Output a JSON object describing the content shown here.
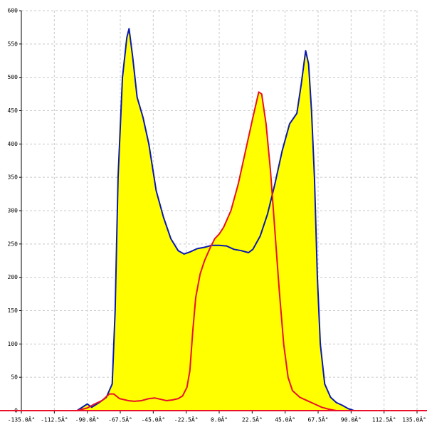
{
  "chart_data": {
    "type": "area",
    "series": [
      {
        "name": null,
        "color": "#0a18b0",
        "fill": "#ffff00",
        "x": [
          -97,
          -90,
          -87,
          -82,
          -77,
          -73,
          -71,
          -69,
          -66,
          -63,
          -61.5,
          -59,
          -56,
          -52,
          -48,
          -43,
          -38,
          -33,
          -28,
          -24,
          -20,
          -15,
          -10,
          -5,
          0,
          5,
          10,
          15,
          20,
          23,
          28,
          33,
          38,
          43,
          48,
          53,
          56,
          59,
          61,
          63,
          65,
          67,
          69,
          72,
          76,
          80,
          84,
          88,
          92
        ],
        "values": [
          0,
          10,
          5,
          12,
          20,
          40,
          150,
          350,
          500,
          560,
          573,
          530,
          470,
          440,
          400,
          330,
          290,
          258,
          240,
          235,
          238,
          243,
          245,
          248,
          248,
          247,
          242,
          240,
          237,
          242,
          262,
          295,
          340,
          390,
          430,
          446,
          490,
          540,
          520,
          450,
          350,
          200,
          100,
          40,
          20,
          12,
          8,
          3,
          0
        ]
      },
      {
        "name": null,
        "color": "#e8102a",
        "fill": "#ffff00",
        "x": [
          -97,
          -90,
          -85,
          -80,
          -75,
          -72,
          -68,
          -62,
          -58,
          -53,
          -48,
          -44,
          -40,
          -36,
          -32,
          -28,
          -25,
          -22,
          -20,
          -18,
          -16,
          -13,
          -10,
          -6,
          -3,
          0,
          3,
          8,
          13,
          18,
          23,
          27,
          29,
          32,
          35,
          38,
          41,
          44,
          47,
          50,
          55,
          60,
          65,
          70,
          75,
          80
        ],
        "values": [
          0,
          4,
          10,
          15,
          25,
          25,
          18,
          15,
          14,
          15,
          18,
          19,
          17,
          15,
          16,
          18,
          22,
          35,
          60,
          120,
          170,
          205,
          225,
          245,
          258,
          265,
          275,
          300,
          340,
          390,
          440,
          478,
          475,
          430,
          360,
          270,
          180,
          100,
          50,
          30,
          20,
          15,
          10,
          5,
          2,
          0
        ]
      }
    ],
    "xlim": [
      -135,
      135
    ],
    "xticks": [
      {
        "value": -135,
        "label": "-135.0Â°"
      },
      {
        "value": -112.5,
        "label": "-112.5Â°"
      },
      {
        "value": -90,
        "label": "-90.0Â°"
      },
      {
        "value": -67.5,
        "label": "-67.5Â°"
      },
      {
        "value": -45,
        "label": "-45.0Â°"
      },
      {
        "value": -22.5,
        "label": "-22.5Â°"
      },
      {
        "value": 0,
        "label": "0.0Â°"
      },
      {
        "value": 22.5,
        "label": "22.5Â°"
      },
      {
        "value": 45,
        "label": "45.0Â°"
      },
      {
        "value": 67.5,
        "label": "67.5Â°"
      },
      {
        "value": 90,
        "label": "90.0Â°"
      },
      {
        "value": 112.5,
        "label": "112.5Â°"
      },
      {
        "value": 135,
        "label": "135.0Â°"
      }
    ],
    "ylim": [
      0,
      600
    ],
    "yticks": [
      0,
      50,
      100,
      150,
      200,
      250,
      300,
      350,
      400,
      450,
      500,
      550,
      600
    ],
    "grid": true
  }
}
